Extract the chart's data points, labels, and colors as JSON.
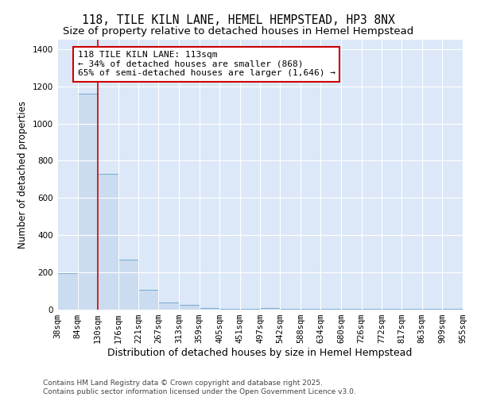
{
  "title1": "118, TILE KILN LANE, HEMEL HEMPSTEAD, HP3 8NX",
  "title2": "Size of property relative to detached houses in Hemel Hempstead",
  "xlabel": "Distribution of detached houses by size in Hemel Hempstead",
  "ylabel": "Number of detached properties",
  "bin_edges": [
    38,
    84,
    130,
    176,
    221,
    267,
    313,
    359,
    405,
    451,
    497,
    542,
    588,
    634,
    680,
    726,
    772,
    817,
    863,
    909,
    955
  ],
  "bar_heights": [
    195,
    1160,
    730,
    270,
    105,
    38,
    27,
    10,
    5,
    5,
    10,
    3,
    3,
    3,
    3,
    3,
    3,
    3,
    3,
    3
  ],
  "bar_color": "#ccdcf0",
  "bar_edge_color": "#7bafd4",
  "bar_edge_width": 0.8,
  "red_line_x": 130,
  "red_line_color": "#cc0000",
  "ylim": [
    0,
    1450
  ],
  "yticks": [
    0,
    200,
    400,
    600,
    800,
    1000,
    1200,
    1400
  ],
  "annotation_text": "118 TILE KILN LANE: 113sqm\n← 34% of detached houses are smaller (868)\n65% of semi-detached houses are larger (1,646) →",
  "annotation_box_color": "#ffffff",
  "annotation_box_edge": "#cc0000",
  "figure_background": "#ffffff",
  "plot_background": "#dce8f8",
  "grid_color": "#ffffff",
  "footnote1": "Contains HM Land Registry data © Crown copyright and database right 2025.",
  "footnote2": "Contains public sector information licensed under the Open Government Licence v3.0.",
  "title1_fontsize": 10.5,
  "title2_fontsize": 9.5,
  "xlabel_fontsize": 9,
  "ylabel_fontsize": 8.5,
  "tick_fontsize": 7.5,
  "annotation_fontsize": 8,
  "footnote_fontsize": 6.5
}
